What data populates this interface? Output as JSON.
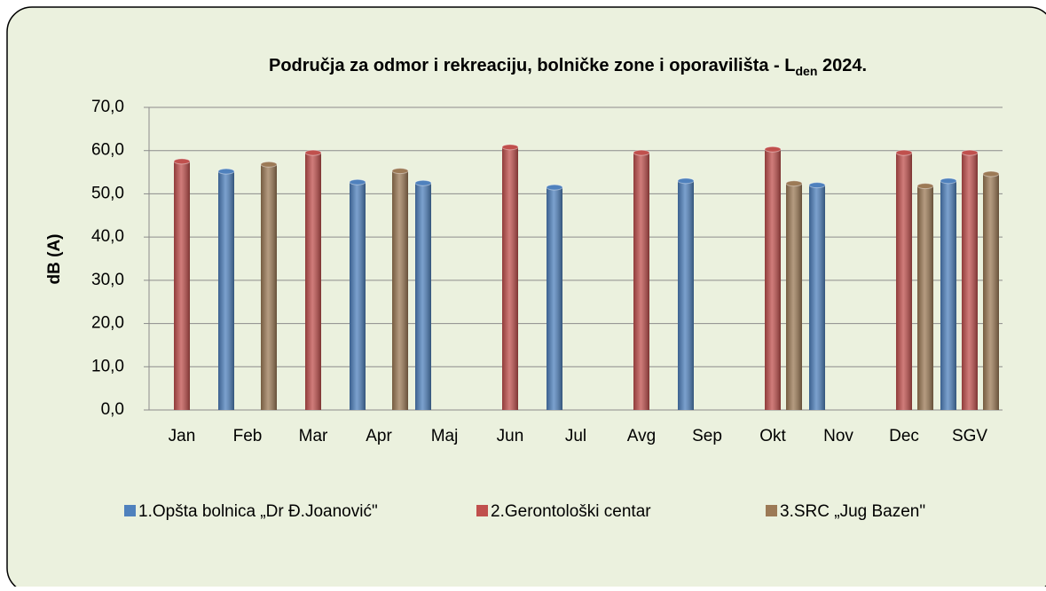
{
  "chart_data": {
    "type": "bar",
    "title": [
      "Područja za odmor i rekreaciju, bolničke zone i oporavilišta - L",
      "den",
      " 2024."
    ],
    "ylabel": "dB (A)",
    "categories": [
      "Jan",
      "Feb",
      "Mar",
      "Apr",
      "Maj",
      "Jun",
      "Jul",
      "Avg",
      "Sep",
      "Okt",
      "Nov",
      "Dec",
      "SGV"
    ],
    "series": [
      {
        "name": "1.Opšta bolnica „Dr Đ.Joanović\"",
        "color": "#4f81bd",
        "values": [
          null,
          55.2,
          null,
          52.7,
          52.5,
          null,
          51.5,
          null,
          53.0,
          null,
          52.0,
          null,
          53.0
        ]
      },
      {
        "name": "2.Gerontološki centar",
        "color": "#c0504d",
        "values": [
          57.5,
          null,
          59.5,
          null,
          null,
          60.8,
          null,
          59.5,
          null,
          60.3,
          null,
          59.5,
          59.5
        ]
      },
      {
        "name": "3.SRC  „Jug Bazen\"",
        "color": "#9c7a56",
        "values": [
          null,
          56.8,
          null,
          55.3,
          null,
          null,
          null,
          null,
          null,
          52.4,
          null,
          51.8,
          54.6
        ]
      }
    ],
    "ylim": [
      0,
      70
    ],
    "yticks": [
      {
        "value": 0,
        "label": "0,0"
      },
      {
        "value": 10,
        "label": "10,0"
      },
      {
        "value": 20,
        "label": "20,0"
      },
      {
        "value": 30,
        "label": "30,0"
      },
      {
        "value": 40,
        "label": "40,0"
      },
      {
        "value": 50,
        "label": "50,0"
      },
      {
        "value": 60,
        "label": "60,0"
      },
      {
        "value": 70,
        "label": "70,0"
      }
    ],
    "grid": true
  }
}
